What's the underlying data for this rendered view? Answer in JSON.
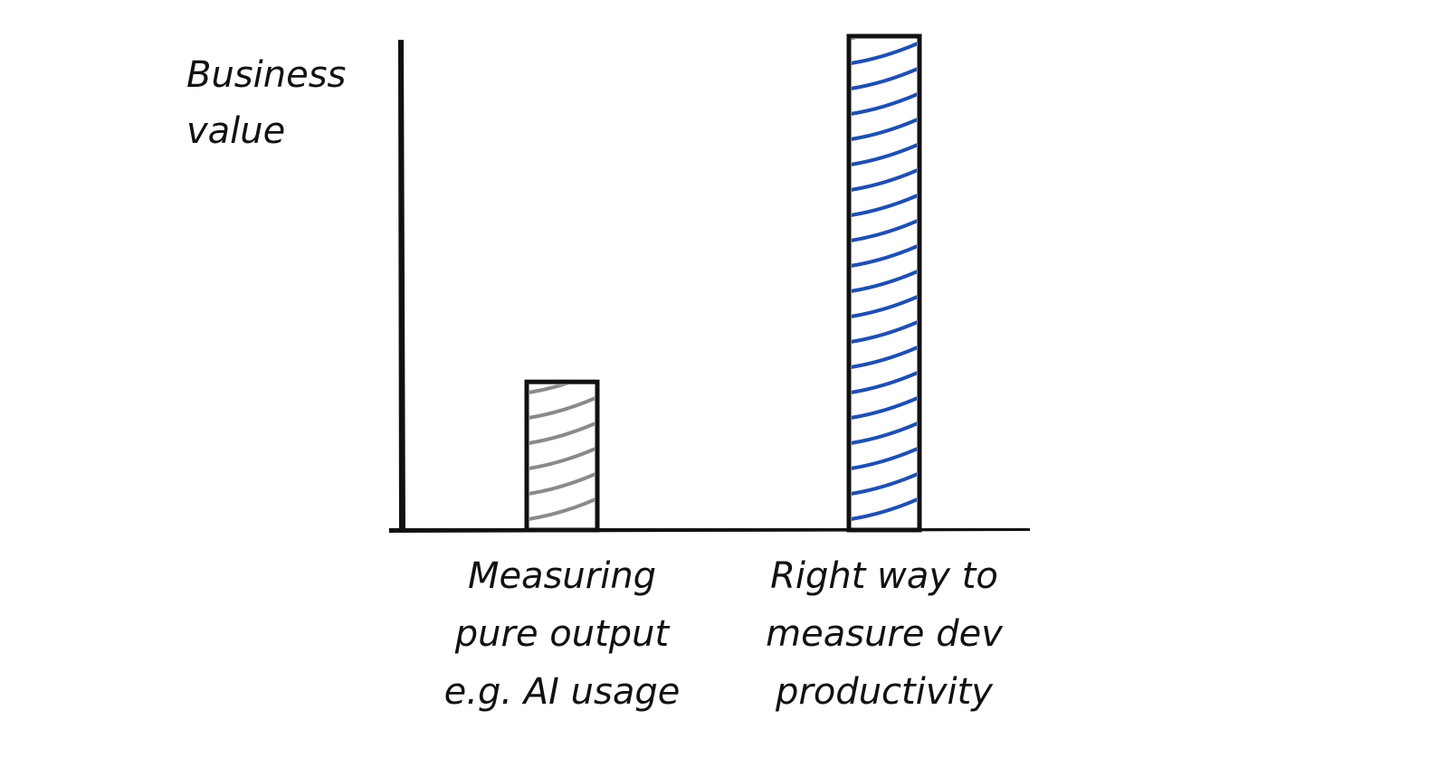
{
  "chart_data": {
    "type": "bar",
    "categories": [
      [
        "Measuring",
        "pure output",
        "e.g. AI usage"
      ],
      [
        "Right way to",
        "measure dev",
        "productivity"
      ]
    ],
    "values": [
      0.3,
      1.0
    ],
    "ylabel": [
      "Business",
      "value"
    ],
    "ylim": [
      0,
      1.0
    ],
    "grid": false,
    "bar_colors": [
      "#8a8a8a",
      "#1f4fb0"
    ],
    "hatch": "diagonal"
  }
}
